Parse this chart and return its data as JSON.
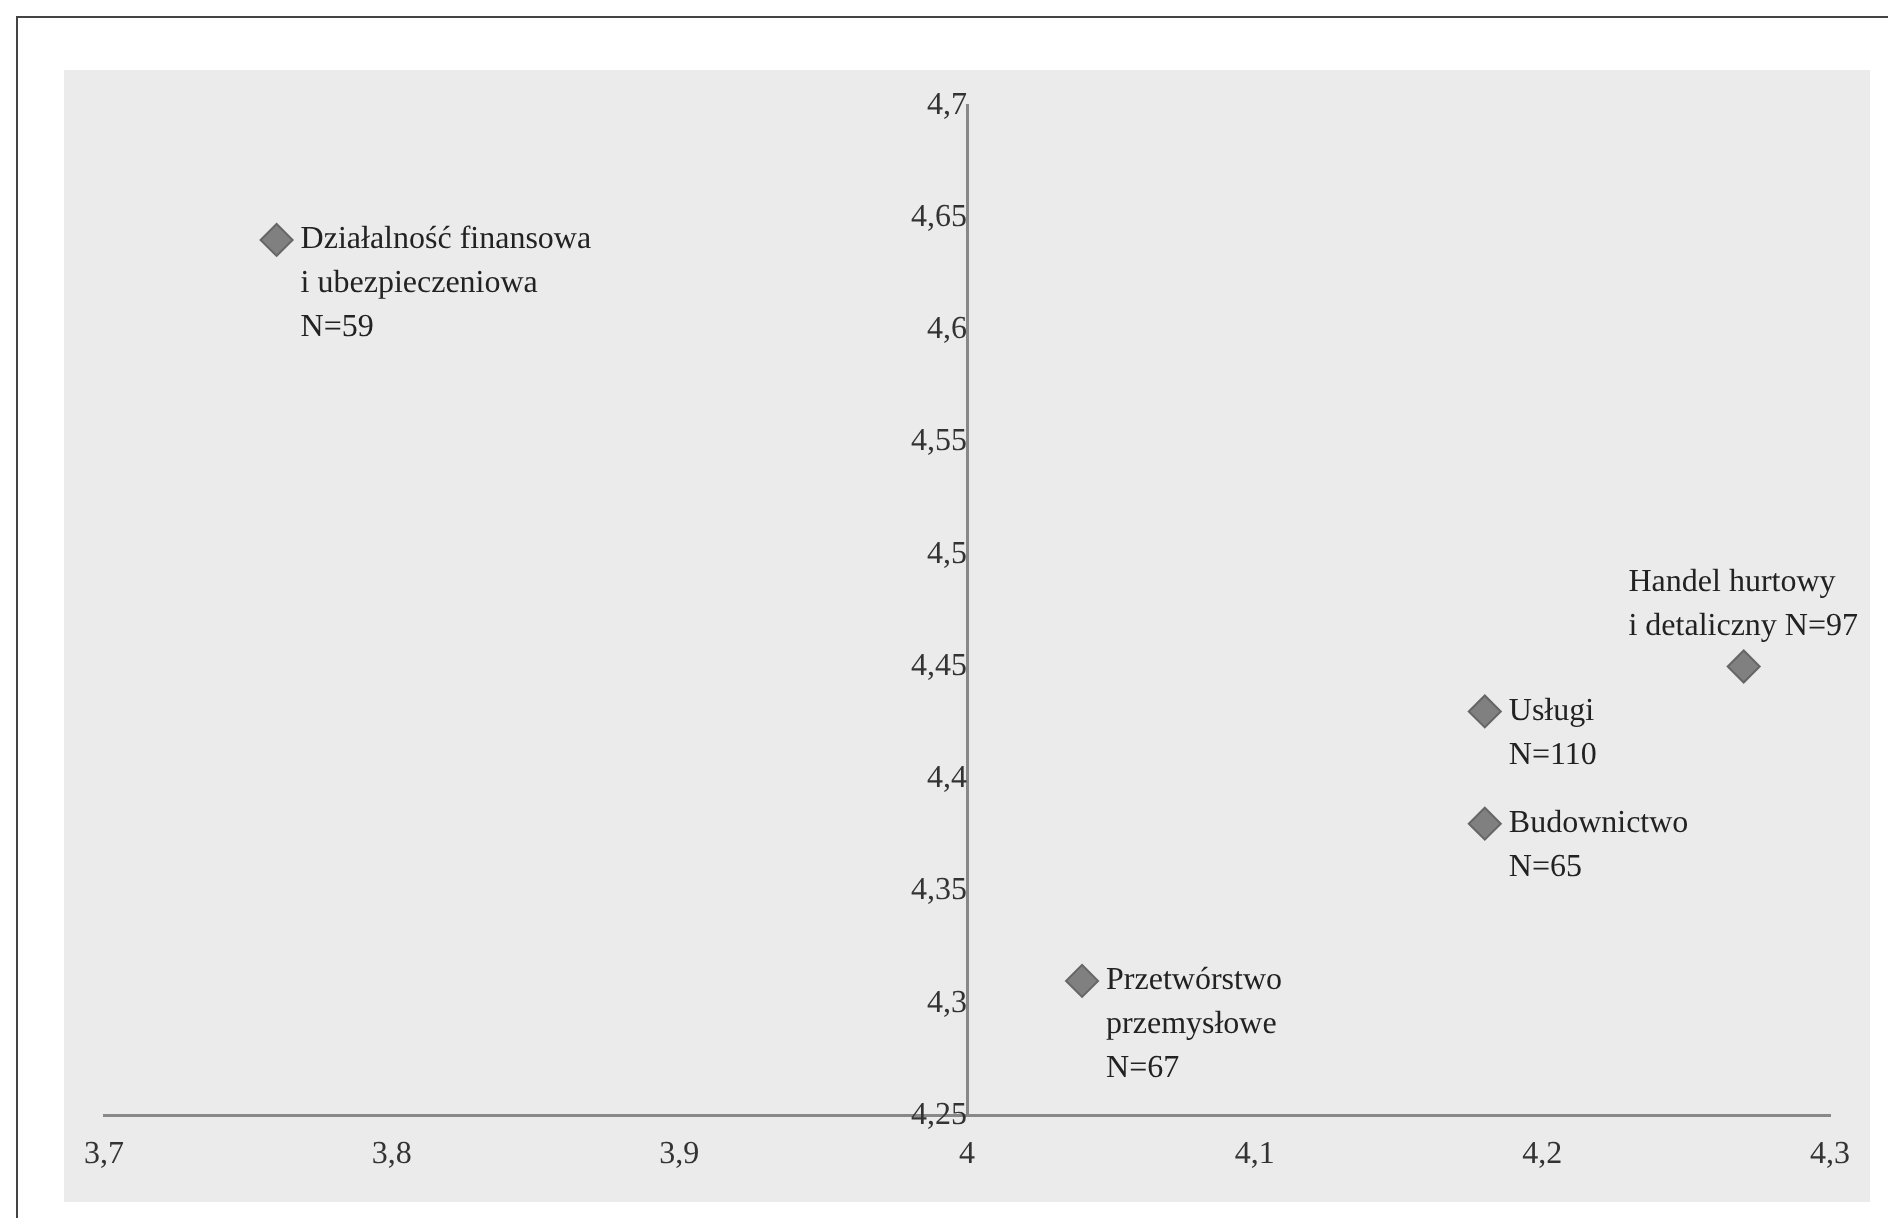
{
  "chart_data": {
    "type": "scatter",
    "x": [
      3.76,
      4.27,
      4.18,
      4.18,
      4.04
    ],
    "values": [
      4.64,
      4.45,
      4.43,
      4.38,
      4.31
    ],
    "color": "#808080",
    "marker": "diamond",
    "grid": false,
    "legend": false,
    "xlim": [
      3.7,
      4.3
    ],
    "xticks": [
      {
        "value": 3.7,
        "label": "3,7"
      },
      {
        "value": 3.8,
        "label": "3,8"
      },
      {
        "value": 3.9,
        "label": "3,9"
      },
      4,
      {
        "value": 4.1,
        "label": "4,1"
      },
      {
        "value": 4.2,
        "label": "4,2"
      },
      {
        "value": 4.3,
        "label": "4,3"
      }
    ],
    "ylim": [
      4.25,
      4.7
    ],
    "yticks": [
      {
        "value": 4.25,
        "label": "4,25"
      },
      {
        "value": 4.3,
        "label": "4,3"
      },
      {
        "value": 4.35,
        "label": "4,35"
      },
      {
        "value": 4.4,
        "label": "4,4"
      },
      {
        "value": 4.45,
        "label": "4,45"
      },
      {
        "value": 4.5,
        "label": "4,5"
      },
      {
        "value": 4.55,
        "label": "4,55"
      },
      {
        "value": 4.6,
        "label": "4,6"
      },
      {
        "value": 4.65,
        "label": "4,65"
      },
      {
        "value": 4.7,
        "label": "4,7"
      }
    ],
    "annotations": [
      {
        "text": "Działalność finansowa\ni ubezpieczeniowa\nN=59",
        "x": 3.76,
        "y": 4.64
      },
      {
        "text": "Handel hurtowy\ni detaliczny N=97",
        "x": 4.27,
        "y": 4.45
      },
      {
        "text": "Usługi\nN=110",
        "x": 4.18,
        "y": 4.43
      },
      {
        "text": "Budownictwo\nN=65",
        "x": 4.18,
        "y": 4.38
      },
      {
        "text": "Przetwórstwo\nprzemysłowe\nN=67",
        "x": 4.04,
        "y": 4.31
      }
    ]
  }
}
